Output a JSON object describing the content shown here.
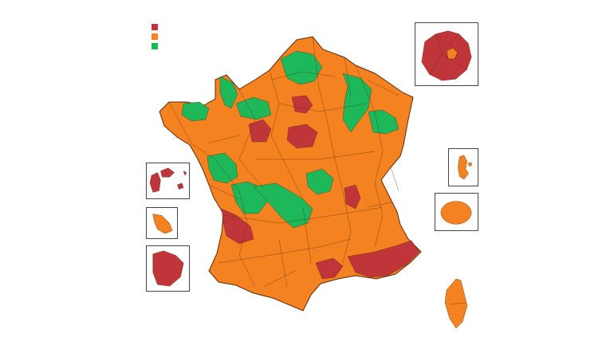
{
  "legend": {
    "items": [
      {
        "color": "#c0353a"
      },
      {
        "color": "#f58220"
      },
      {
        "color": "#1db85a"
      }
    ]
  },
  "colors": {
    "red": "#c0353a",
    "orange": "#f58220",
    "green": "#1db85a",
    "border": "#5a2d0c"
  },
  "map": {
    "mainland_base": "orange",
    "insets": [
      "paris-region",
      "mayotte",
      "reunion",
      "guadeloupe",
      "martinique",
      "guyane",
      "corse"
    ]
  }
}
